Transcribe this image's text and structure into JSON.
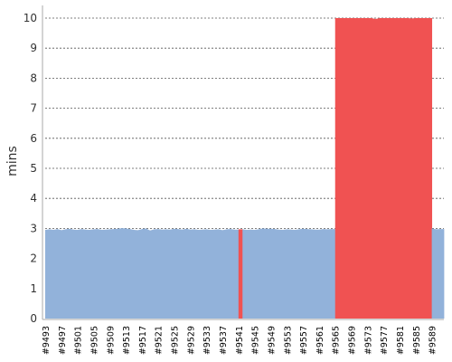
{
  "chart_data": {
    "type": "area",
    "title": "",
    "xlabel": "",
    "ylabel": "mins",
    "ylim": [
      0,
      10
    ],
    "yticks": [
      "0",
      "1",
      "2",
      "3",
      "4",
      "5",
      "6",
      "7",
      "8",
      "9",
      "10"
    ],
    "grid": "horizontal dashed",
    "legend": "none",
    "colors": {
      "pass": "#92b2da",
      "fail": "#f05252",
      "grid": "#555555",
      "axis": "#aaaaaa"
    },
    "x_range": [
      "#9493",
      "#9591"
    ],
    "xtick_labels": [
      "#9493",
      "#9497",
      "#9501",
      "#9505",
      "#9509",
      "#9513",
      "#9517",
      "#9521",
      "#9525",
      "#9529",
      "#9533",
      "#9537",
      "#9541",
      "#9545",
      "#9549",
      "#9553",
      "#9557",
      "#9561",
      "#9565",
      "#9569",
      "#9573",
      "#9577",
      "#9581",
      "#9585",
      "#9589"
    ],
    "points": [
      [
        "#9493",
        2.95,
        "pass"
      ],
      [
        "#9494",
        2.97,
        "pass"
      ],
      [
        "#9495",
        2.95,
        "pass"
      ],
      [
        "#9496",
        2.98,
        "pass"
      ],
      [
        "#9497",
        2.94,
        "pass"
      ],
      [
        "#9498",
        2.97,
        "pass"
      ],
      [
        "#9499",
        2.99,
        "pass"
      ],
      [
        "#9500",
        2.96,
        "pass"
      ],
      [
        "#9501",
        2.95,
        "pass"
      ],
      [
        "#9502",
        2.98,
        "pass"
      ],
      [
        "#9503",
        2.96,
        "pass"
      ],
      [
        "#9504",
        2.95,
        "pass"
      ],
      [
        "#9505",
        2.97,
        "pass"
      ],
      [
        "#9506",
        2.98,
        "pass"
      ],
      [
        "#9507",
        2.95,
        "pass"
      ],
      [
        "#9508",
        2.96,
        "pass"
      ],
      [
        "#9509",
        2.97,
        "pass"
      ],
      [
        "#9510",
        2.98,
        "pass"
      ],
      [
        "#9511",
        2.99,
        "pass"
      ],
      [
        "#9512",
        3.01,
        "pass"
      ],
      [
        "#9513",
        3.0,
        "pass"
      ],
      [
        "#9514",
        2.98,
        "pass"
      ],
      [
        "#9515",
        2.95,
        "pass"
      ],
      [
        "#9516",
        2.94,
        "pass"
      ],
      [
        "#9517",
        2.98,
        "pass"
      ],
      [
        "#9518",
        3.0,
        "pass"
      ],
      [
        "#9519",
        2.93,
        "pass"
      ],
      [
        "#9520",
        2.97,
        "pass"
      ],
      [
        "#9521",
        2.98,
        "pass"
      ],
      [
        "#9522",
        2.96,
        "pass"
      ],
      [
        "#9523",
        2.97,
        "pass"
      ],
      [
        "#9524",
        2.96,
        "pass"
      ],
      [
        "#9525",
        2.99,
        "pass"
      ],
      [
        "#9526",
        2.98,
        "pass"
      ],
      [
        "#9527",
        2.96,
        "pass"
      ],
      [
        "#9528",
        2.99,
        "pass"
      ],
      [
        "#9529",
        2.96,
        "pass"
      ],
      [
        "#9530",
        2.97,
        "pass"
      ],
      [
        "#9531",
        2.95,
        "pass"
      ],
      [
        "#9532",
        2.96,
        "pass"
      ],
      [
        "#9533",
        2.97,
        "pass"
      ],
      [
        "#9534",
        2.95,
        "pass"
      ],
      [
        "#9535",
        2.96,
        "pass"
      ],
      [
        "#9536",
        2.97,
        "pass"
      ],
      [
        "#9537",
        2.94,
        "pass"
      ],
      [
        "#9538",
        2.97,
        "pass"
      ],
      [
        "#9539",
        2.98,
        "pass"
      ],
      [
        "#9540",
        2.96,
        "pass"
      ],
      [
        "#9541",
        2.97,
        "fail"
      ],
      [
        "#9542",
        2.97,
        "pass"
      ],
      [
        "#9543",
        2.95,
        "pass"
      ],
      [
        "#9544",
        2.96,
        "pass"
      ],
      [
        "#9545",
        2.95,
        "pass"
      ],
      [
        "#9546",
        2.97,
        "pass"
      ],
      [
        "#9547",
        3.0,
        "pass"
      ],
      [
        "#9548",
        2.99,
        "pass"
      ],
      [
        "#9549",
        2.99,
        "pass"
      ],
      [
        "#9550",
        2.98,
        "pass"
      ],
      [
        "#9551",
        2.96,
        "pass"
      ],
      [
        "#9552",
        2.95,
        "pass"
      ],
      [
        "#9553",
        2.97,
        "pass"
      ],
      [
        "#9554",
        2.96,
        "pass"
      ],
      [
        "#9555",
        2.95,
        "pass"
      ],
      [
        "#9556",
        2.97,
        "pass"
      ],
      [
        "#9557",
        2.99,
        "pass"
      ],
      [
        "#9558",
        2.98,
        "pass"
      ],
      [
        "#9559",
        2.97,
        "pass"
      ],
      [
        "#9560",
        2.96,
        "pass"
      ],
      [
        "#9561",
        2.96,
        "pass"
      ],
      [
        "#9562",
        2.98,
        "pass"
      ],
      [
        "#9563",
        2.97,
        "pass"
      ],
      [
        "#9564",
        2.98,
        "pass"
      ],
      [
        "#9565",
        10.0,
        "fail"
      ],
      [
        "#9566",
        10.0,
        "fail"
      ],
      [
        "#9567",
        10.0,
        "fail"
      ],
      [
        "#9568",
        10.0,
        "fail"
      ],
      [
        "#9569",
        10.0,
        "fail"
      ],
      [
        "#9570",
        10.0,
        "fail"
      ],
      [
        "#9571",
        10.0,
        "fail"
      ],
      [
        "#9572",
        10.0,
        "fail"
      ],
      [
        "#9573",
        10.0,
        "fail"
      ],
      [
        "#9574",
        10.0,
        "fail"
      ],
      [
        "#9575",
        9.97,
        "fail"
      ],
      [
        "#9576",
        10.0,
        "fail"
      ],
      [
        "#9577",
        10.0,
        "fail"
      ],
      [
        "#9578",
        10.0,
        "fail"
      ],
      [
        "#9579",
        10.0,
        "fail"
      ],
      [
        "#9580",
        10.0,
        "fail"
      ],
      [
        "#9581",
        10.0,
        "fail"
      ],
      [
        "#9582",
        10.0,
        "fail"
      ],
      [
        "#9583",
        10.0,
        "fail"
      ],
      [
        "#9584",
        9.99,
        "fail"
      ],
      [
        "#9585",
        10.0,
        "fail"
      ],
      [
        "#9586",
        10.0,
        "fail"
      ],
      [
        "#9587",
        10.0,
        "fail"
      ],
      [
        "#9588",
        10.0,
        "fail"
      ],
      [
        "#9589",
        3.0,
        "pass"
      ],
      [
        "#9590",
        2.97,
        "pass"
      ],
      [
        "#9591",
        2.98,
        "pass"
      ]
    ]
  }
}
